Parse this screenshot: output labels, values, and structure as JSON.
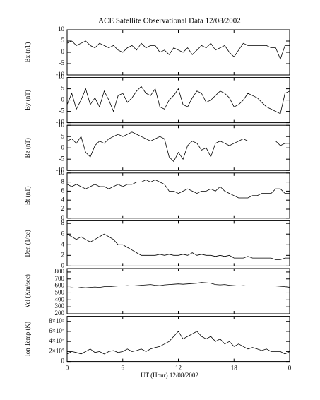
{
  "chart_data": {
    "type": "line",
    "title": "ACE Satellite Observational Data   12/08/2002",
    "xlabel": "UT (Hour)   12/08/2002",
    "xlim": [
      0,
      24
    ],
    "xticks": [
      0,
      6,
      12,
      18,
      {
        "value": 24,
        "label": "0"
      }
    ],
    "x": [
      0,
      0.5,
      1,
      1.5,
      2,
      2.5,
      3,
      3.5,
      4,
      4.5,
      5,
      5.5,
      6,
      6.5,
      7,
      7.5,
      8,
      8.5,
      9,
      9.5,
      10,
      10.5,
      11,
      11.5,
      12,
      12.5,
      13,
      13.5,
      14,
      14.5,
      15,
      15.5,
      16,
      16.5,
      17,
      17.5,
      18,
      18.5,
      19,
      19.5,
      20,
      20.5,
      21,
      21.5,
      22,
      22.5,
      23,
      23.5,
      24
    ],
    "color": "#000000",
    "panels": [
      {
        "ylabel": "Bx (nT)",
        "ylim": [
          -10,
          10
        ],
        "yticks": [
          -10,
          -5,
          0,
          5,
          10
        ],
        "values": [
          4,
          5,
          3,
          4,
          5,
          3,
          2,
          4,
          3,
          2,
          3,
          1,
          0,
          2,
          3,
          1,
          4,
          2,
          3,
          3,
          0,
          1,
          -1,
          2,
          1,
          0,
          2,
          -1,
          1,
          3,
          2,
          4,
          1,
          2,
          3,
          0,
          -2,
          1,
          4,
          3,
          3,
          3,
          3,
          3,
          2,
          2,
          -3,
          3,
          3
        ]
      },
      {
        "ylabel": "By (nT)",
        "ylim": [
          -10,
          10
        ],
        "yticks": [
          -10,
          -5,
          0,
          5,
          10
        ],
        "values": [
          -2,
          3,
          -4,
          0,
          5,
          -2,
          1,
          -3,
          4,
          0,
          -5,
          2,
          3,
          -1,
          1,
          4,
          6,
          3,
          2,
          5,
          -3,
          -4,
          0,
          2,
          5,
          -2,
          -3,
          1,
          4,
          3,
          -1,
          0,
          2,
          4,
          3,
          1,
          -3,
          -2,
          0,
          3,
          2,
          1,
          -1,
          -3,
          -4,
          -5,
          -6,
          3,
          4
        ]
      },
      {
        "ylabel": "Bz (nT)",
        "ylim": [
          -10,
          10
        ],
        "yticks": [
          -10,
          -5,
          0,
          5,
          10
        ],
        "values": [
          3,
          4,
          2,
          5,
          -2,
          -4,
          1,
          3,
          2,
          4,
          5,
          6,
          5,
          6,
          7,
          6,
          5,
          4,
          3,
          4,
          5,
          4,
          -4,
          -6,
          -2,
          -5,
          1,
          3,
          2,
          -1,
          0,
          -4,
          2,
          3,
          2,
          1,
          2,
          3,
          4,
          3,
          3,
          3,
          3,
          3,
          3,
          3,
          1,
          2,
          2
        ]
      },
      {
        "ylabel": "Bt (nT)",
        "ylim": [
          0,
          10
        ],
        "yticks": [
          0,
          2,
          4,
          6,
          8,
          10
        ],
        "values": [
          7.5,
          7,
          7.5,
          7,
          6.5,
          7,
          7.5,
          7,
          7,
          6.5,
          7,
          7.5,
          7,
          7.5,
          7.5,
          8,
          8,
          8.5,
          8,
          8.5,
          8,
          7.5,
          6,
          6,
          5.5,
          6,
          6.5,
          6,
          5.5,
          6,
          6,
          6.5,
          6,
          7,
          6,
          5.5,
          5,
          4.5,
          4.5,
          4.5,
          5,
          5,
          5.5,
          5.5,
          5.5,
          6.5,
          6.5,
          5.5,
          5.5
        ]
      },
      {
        "ylabel": "Den (1/cc)",
        "ylim": [
          0,
          8.5
        ],
        "yticks": [
          0,
          2,
          4,
          6,
          8
        ],
        "values": [
          6,
          5.5,
          5,
          5.5,
          5,
          4.5,
          5,
          5.5,
          6,
          5.5,
          5,
          4,
          4,
          3.5,
          3,
          2.5,
          2,
          2,
          2,
          2,
          2.2,
          2,
          2.2,
          2,
          2,
          2.2,
          2,
          2.5,
          2,
          2.2,
          2,
          2,
          1.8,
          2,
          1.8,
          2,
          1.5,
          1.5,
          1.5,
          1.8,
          1.5,
          1.5,
          1.5,
          1.5,
          1.5,
          1.2,
          1.2,
          1.5,
          1.5
        ]
      },
      {
        "ylabel": "Vel (Km/sec)",
        "ylim": [
          200,
          850
        ],
        "yticks": [
          200,
          300,
          400,
          500,
          600,
          700,
          800
        ],
        "values": [
          570,
          575,
          570,
          580,
          575,
          580,
          585,
          580,
          590,
          590,
          595,
          600,
          600,
          605,
          600,
          605,
          610,
          615,
          620,
          610,
          605,
          615,
          620,
          625,
          630,
          625,
          630,
          635,
          640,
          650,
          645,
          640,
          620,
          615,
          620,
          610,
          605,
          600,
          605,
          600,
          600,
          600,
          600,
          600,
          600,
          600,
          595,
          590,
          580
        ]
      },
      {
        "ylabel": "Ion Temp (K)",
        "ylim": [
          0,
          900000
        ],
        "yticks": [
          0,
          {
            "value": 200000,
            "label": "2×10⁵"
          },
          {
            "value": 400000,
            "label": "4×10⁵"
          },
          {
            "value": 600000,
            "label": "6×10⁵"
          },
          {
            "value": 800000,
            "label": "8×10⁵"
          }
        ],
        "values": [
          150000,
          200000,
          180000,
          150000,
          200000,
          250000,
          180000,
          200000,
          150000,
          200000,
          220000,
          180000,
          200000,
          250000,
          200000,
          220000,
          250000,
          200000,
          250000,
          280000,
          300000,
          350000,
          400000,
          500000,
          600000,
          450000,
          500000,
          550000,
          600000,
          500000,
          450000,
          500000,
          400000,
          450000,
          350000,
          400000,
          300000,
          350000,
          300000,
          250000,
          280000,
          250000,
          220000,
          250000,
          200000,
          200000,
          200000,
          150000,
          200000
        ]
      }
    ]
  }
}
